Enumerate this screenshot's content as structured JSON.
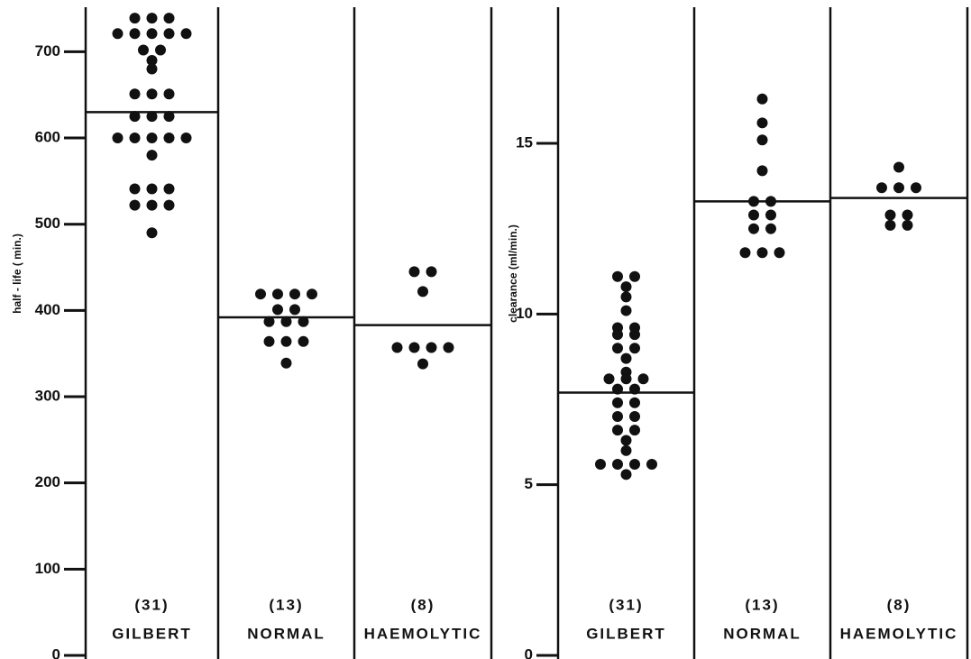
{
  "chart_data": [
    {
      "type": "strip",
      "y_label": "half - life ( min.)",
      "categories": [
        "GILBERT",
        "NORMAL",
        "HAEMOLYTIC"
      ],
      "group_sizes": [
        "(31)",
        "(13)",
        "(8)"
      ],
      "values": [
        [
          739,
          739,
          739,
          721,
          721,
          721,
          721,
          721,
          702,
          702,
          690,
          680,
          651,
          651,
          651,
          625,
          625,
          625,
          600,
          600,
          600,
          600,
          600,
          580,
          541,
          541,
          541,
          522,
          522,
          522,
          490
        ],
        [
          419,
          419,
          419,
          419,
          401,
          401,
          387,
          387,
          387,
          364,
          364,
          364,
          339
        ],
        [
          445,
          445,
          422,
          357,
          357,
          357,
          357,
          338
        ]
      ],
      "means": [
        630,
        392,
        383
      ],
      "color": "#111111",
      "ylim": [
        0,
        760
      ],
      "yticks": [
        0,
        100,
        200,
        300,
        400,
        500,
        600,
        700
      ]
    },
    {
      "type": "strip",
      "y_label": "clearance  (ml/min.)",
      "categories": [
        "GILBERT",
        "NORMAL",
        "HAEMOLYTIC"
      ],
      "group_sizes": [
        "(31)",
        "(13)",
        "(8)"
      ],
      "values": [
        [
          11.1,
          11.1,
          10.8,
          10.5,
          10.1,
          9.6,
          9.6,
          9.4,
          9.4,
          9.0,
          9.0,
          8.7,
          8.3,
          8.1,
          8.1,
          8.1,
          7.8,
          7.8,
          7.4,
          7.4,
          7.0,
          7.0,
          6.6,
          6.6,
          6.3,
          6.0,
          5.6,
          5.6,
          5.6,
          5.6,
          5.3
        ],
        [
          16.3,
          15.6,
          15.1,
          14.2,
          13.3,
          13.3,
          12.9,
          12.9,
          12.5,
          12.5,
          11.8,
          11.8,
          11.8
        ],
        [
          14.3,
          13.7,
          13.7,
          13.7,
          12.9,
          12.9,
          12.6,
          12.6
        ]
      ],
      "means": [
        7.7,
        13.3,
        13.4
      ],
      "color": "#111111",
      "ylim": [
        0,
        19.2
      ],
      "yticks": [
        0,
        5,
        10,
        15
      ]
    }
  ]
}
